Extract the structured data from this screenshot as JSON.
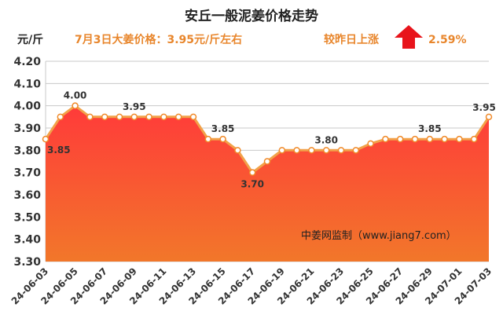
{
  "chart_data": {
    "type": "area",
    "title": "安丘一般泥姜价格走势",
    "ylabel": "元/斤",
    "subtitle": "7月3日大姜价格：3.95元/斤左右",
    "change_label": "较昨日上涨",
    "change_value": "2.59%",
    "watermark": "中姜网监制（www.jiang7.com）",
    "ylim": [
      3.3,
      4.2
    ],
    "yticks": [
      "3.30",
      "3.40",
      "3.50",
      "3.60",
      "3.70",
      "3.80",
      "3.90",
      "4.00",
      "4.10",
      "4.20"
    ],
    "grid": true,
    "x": [
      "24-06-03",
      "24-06-04",
      "24-06-05",
      "24-06-06",
      "24-06-07",
      "24-06-08",
      "24-06-09",
      "24-06-10",
      "24-06-11",
      "24-06-12",
      "24-06-13",
      "24-06-14",
      "24-06-15",
      "24-06-16",
      "24-06-17",
      "24-06-18",
      "24-06-19",
      "24-06-20",
      "24-06-21",
      "24-06-22",
      "24-06-23",
      "24-06-24",
      "24-06-25",
      "24-06-26",
      "24-06-27",
      "24-06-28",
      "24-06-29",
      "24-06-30",
      "24-07-01",
      "24-07-02",
      "24-07-03"
    ],
    "xticks": [
      "24-06-03",
      "24-06-05",
      "24-06-07",
      "24-06-09",
      "24-06-11",
      "24-06-13",
      "24-06-15",
      "24-06-17",
      "24-06-19",
      "24-06-21",
      "24-06-23",
      "24-06-25",
      "24-06-27",
      "24-06-29",
      "24-07-01",
      "24-07-03"
    ],
    "values": [
      3.85,
      3.95,
      4.0,
      3.95,
      3.95,
      3.95,
      3.95,
      3.95,
      3.95,
      3.95,
      3.95,
      3.85,
      3.85,
      3.8,
      3.7,
      3.75,
      3.8,
      3.8,
      3.8,
      3.8,
      3.8,
      3.8,
      3.83,
      3.85,
      3.85,
      3.85,
      3.85,
      3.85,
      3.85,
      3.85,
      3.95
    ],
    "data_labels": [
      {
        "index": 0,
        "text": "3.85"
      },
      {
        "index": 2,
        "text": "4.00"
      },
      {
        "index": 6,
        "text": "3.95"
      },
      {
        "index": 12,
        "text": "3.85"
      },
      {
        "index": 14,
        "text": "3.70"
      },
      {
        "index": 19,
        "text": "3.80"
      },
      {
        "index": 26,
        "text": "3.85"
      },
      {
        "index": 30,
        "text": "3.95"
      }
    ],
    "colors": {
      "line": "#f2a24a",
      "marker_stroke": "#f08a2a",
      "area_top": "#ff3a3a",
      "area_bottom": "#f2772a",
      "header_accent": "#e8862c",
      "arrow": "#e8141b"
    }
  }
}
